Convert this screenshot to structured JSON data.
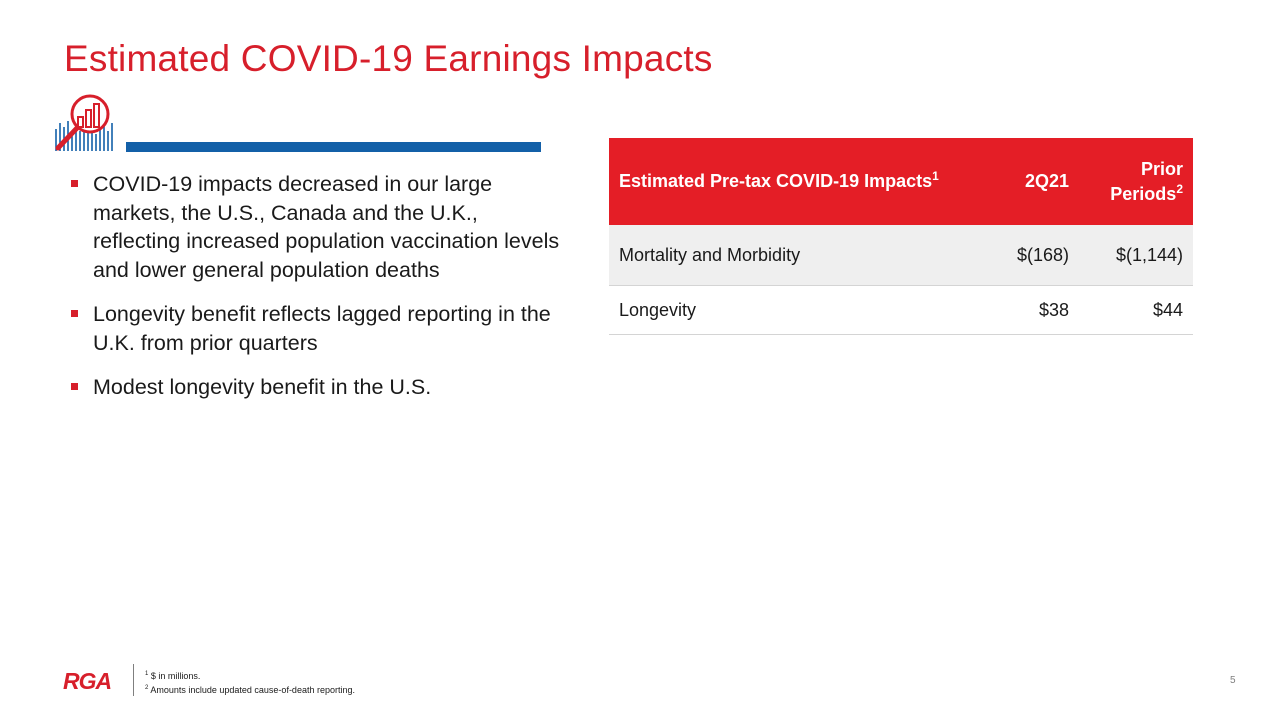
{
  "slide": {
    "title": "Estimated COVID-19 Earnings Impacts",
    "page_number": "5"
  },
  "bullets": [
    "COVID-19 impacts decreased in our large markets, the U.S., Canada and the U.K., reflecting increased population vaccination levels and lower general population deaths",
    "Longevity benefit reflects lagged reporting in the U.K. from prior quarters",
    "Modest longevity benefit in the U.S."
  ],
  "table": {
    "header": {
      "col1": "Estimated Pre-tax COVID-19 Impacts",
      "col1_sup": "1",
      "col2": "2Q21",
      "col3_line1": "Prior",
      "col3_line2": "Periods",
      "col3_sup": "2"
    },
    "rows": [
      {
        "label": "Mortality and Morbidity",
        "q2_21": "$(168)",
        "prior": "$(1,144)"
      },
      {
        "label": "Longevity",
        "q2_21": "$38",
        "prior": "$44"
      }
    ]
  },
  "footnotes": [
    {
      "marker": "1",
      "text": " $ in millions."
    },
    {
      "marker": "2",
      "text": " Amounts include updated cause-of-death reporting."
    }
  ],
  "logo": {
    "text": "RGA",
    "icon": "rga-logo"
  },
  "icons": {
    "title_icon": "chart-magnifier-icon"
  },
  "colors": {
    "brand_red": "#d71f2b",
    "table_header_red": "#e41e26",
    "rule_blue": "#1360a8"
  }
}
